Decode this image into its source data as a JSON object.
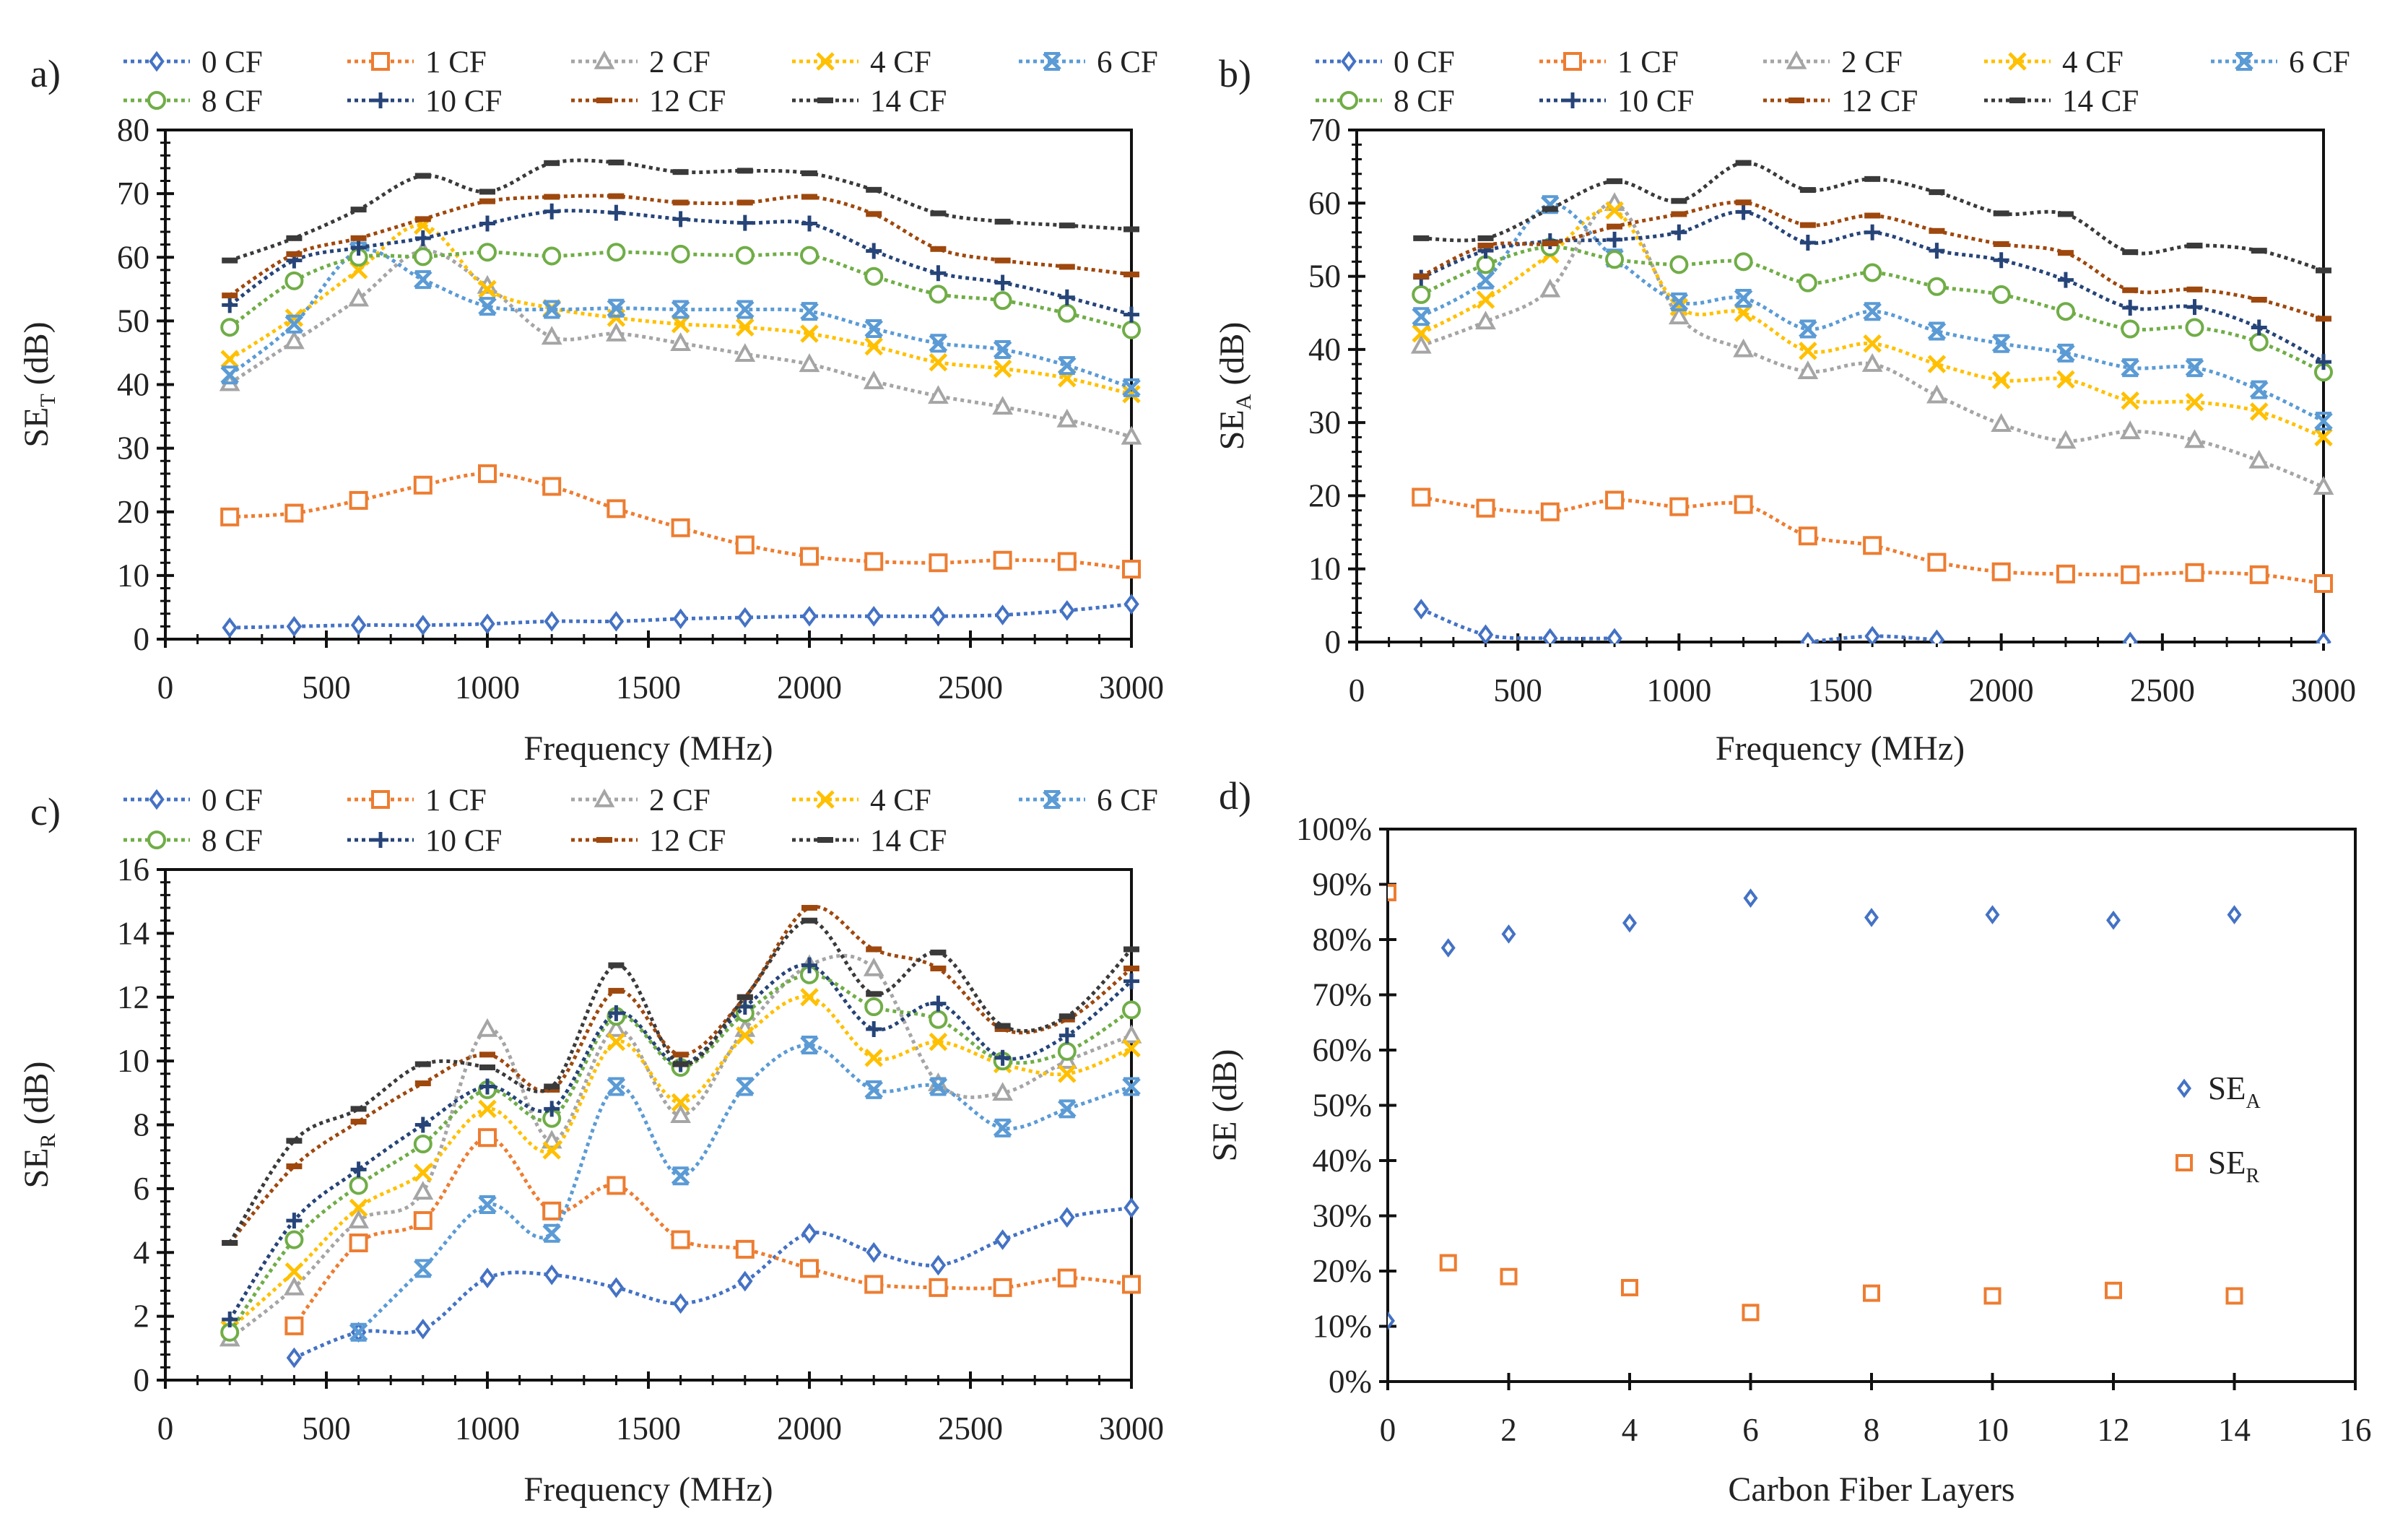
{
  "series_styles": {
    "0 CF": {
      "color": "#4472C4",
      "marker": "diamond"
    },
    "1 CF": {
      "color": "#ED7D31",
      "marker": "square"
    },
    "2 CF": {
      "color": "#A5A5A5",
      "marker": "triangle"
    },
    "4 CF": {
      "color": "#FFC000",
      "marker": "x"
    },
    "6 CF": {
      "color": "#5B9BD5",
      "marker": "star"
    },
    "8 CF": {
      "color": "#70AD47",
      "marker": "circle"
    },
    "10 CF": {
      "color": "#264478",
      "marker": "plus"
    },
    "12 CF": {
      "color": "#9E480E",
      "marker": "dash"
    },
    "14 CF": {
      "color": "#3A3A3A",
      "marker": "dash"
    }
  },
  "chart_data": [
    {
      "panel": "a)",
      "type": "line",
      "xlabel": "Frequency (MHz)",
      "ylabel": {
        "main": "SE",
        "sub": "T",
        "unit": " (dB)"
      },
      "xlim": [
        0,
        3000
      ],
      "ylim": [
        0,
        80
      ],
      "xticks": [
        "0",
        "500",
        "1000",
        "1500",
        "2000",
        "2500",
        "3000"
      ],
      "yticks": [
        "0",
        "10",
        "20",
        "30",
        "40",
        "50",
        "60",
        "70",
        "80"
      ],
      "grid": false,
      "legend": "top",
      "x": [
        200,
        400,
        600,
        800,
        1000,
        1200,
        1400,
        1600,
        1800,
        2000,
        2200,
        2400,
        2600,
        2800,
        3000
      ],
      "series": [
        {
          "name": "0 CF",
          "values": [
            1.8,
            2,
            2.2,
            2.2,
            2.4,
            2.8,
            2.8,
            3.2,
            3.4,
            3.6,
            3.6,
            3.6,
            3.8,
            4.5,
            5.5
          ]
        },
        {
          "name": "1 CF",
          "values": [
            19.2,
            19.8,
            21.8,
            24.2,
            26,
            24,
            20.5,
            17.5,
            14.8,
            13,
            12.2,
            12,
            12.4,
            12.2,
            11
          ]
        },
        {
          "name": "2 CF",
          "values": [
            40.2,
            46.8,
            53.5,
            61,
            55.5,
            47.5,
            48,
            46.5,
            44.8,
            43.2,
            40.5,
            38.2,
            36.5,
            34.5,
            31.8
          ]
        },
        {
          "name": "4 CF",
          "values": [
            44,
            50.5,
            58,
            65,
            55,
            52,
            50.5,
            49.5,
            49,
            48,
            46,
            43.5,
            42.5,
            41,
            38.5
          ]
        },
        {
          "name": "6 CF",
          "values": [
            41.5,
            49.5,
            61,
            56.5,
            52.3,
            51.8,
            52,
            51.8,
            51.8,
            51.5,
            48.8,
            46.5,
            45.5,
            43,
            39.5
          ]
        },
        {
          "name": "8 CF",
          "values": [
            49,
            56.3,
            60,
            60.1,
            60.8,
            60.2,
            60.8,
            60.5,
            60.3,
            60.3,
            57,
            54.2,
            53.2,
            51.2,
            48.6
          ]
        },
        {
          "name": "10 CF",
          "values": [
            52.5,
            59.5,
            61.5,
            63,
            65.3,
            67.2,
            67,
            66,
            65.4,
            65.3,
            61,
            57.5,
            56,
            53.7,
            51
          ]
        },
        {
          "name": "12 CF",
          "values": [
            54,
            60.5,
            63,
            66,
            68.8,
            69.5,
            69.6,
            68.6,
            68.6,
            69.5,
            66.8,
            61.3,
            59.5,
            58.5,
            57.3
          ]
        },
        {
          "name": "14 CF",
          "values": [
            59.5,
            63,
            67.5,
            72.8,
            70.3,
            74.8,
            74.9,
            73.4,
            73.6,
            73.2,
            70.6,
            66.9,
            65.6,
            65,
            64.4
          ]
        }
      ]
    },
    {
      "panel": "b)",
      "type": "line",
      "xlabel": "Frequency (MHz)",
      "ylabel": {
        "main": "SE",
        "sub": "A",
        "unit": " (dB)"
      },
      "xlim": [
        0,
        3000
      ],
      "ylim": [
        0,
        70
      ],
      "xticks": [
        "0",
        "500",
        "1000",
        "1500",
        "2000",
        "2500",
        "3000"
      ],
      "yticks": [
        "0",
        "10",
        "20",
        "30",
        "40",
        "50",
        "60",
        "70"
      ],
      "grid": false,
      "legend": "top",
      "x": [
        200,
        400,
        600,
        800,
        1000,
        1200,
        1400,
        1600,
        1800,
        2000,
        2200,
        2400,
        2600,
        2800,
        3000
      ],
      "series": [
        {
          "name": "0 CF",
          "values": [
            4.5,
            1,
            0.5,
            0.5,
            null,
            null,
            0,
            0.8,
            0.3,
            null,
            null,
            0,
            null,
            null,
            0
          ]
        },
        {
          "name": "1 CF",
          "values": [
            19.8,
            18.3,
            17.8,
            19.4,
            18.5,
            18.8,
            14.5,
            13.2,
            10.9,
            9.6,
            9.3,
            9.2,
            9.5,
            9.2,
            8
          ]
        },
        {
          "name": "2 CF",
          "values": [
            40.5,
            43.8,
            48.2,
            60,
            44.5,
            40,
            37,
            38,
            33.7,
            29.8,
            27.5,
            28.8,
            27.6,
            24.8,
            21.2
          ]
        },
        {
          "name": "4 CF",
          "values": [
            42.2,
            46.8,
            53,
            59,
            45.8,
            45,
            39.8,
            40.8,
            38,
            35.8,
            35.9,
            33,
            32.8,
            31.5,
            28
          ]
        },
        {
          "name": "6 CF",
          "values": [
            44.5,
            49.5,
            59.8,
            52.5,
            46.5,
            47,
            42.8,
            45.2,
            42.5,
            40.8,
            39.5,
            37.5,
            37.5,
            34.5,
            30.2
          ]
        },
        {
          "name": "8 CF",
          "values": [
            47.5,
            51.6,
            54,
            52.3,
            51.6,
            52,
            49.1,
            50.5,
            48.6,
            47.5,
            45.2,
            42.8,
            43,
            41,
            36.9
          ]
        },
        {
          "name": "10 CF",
          "values": [
            49.8,
            53.5,
            54.8,
            55,
            56,
            58.8,
            54.6,
            56,
            53.5,
            52.2,
            49.5,
            45.7,
            45.8,
            43,
            38.3
          ]
        },
        {
          "name": "12 CF",
          "values": [
            50,
            54.2,
            54.5,
            56.8,
            58.5,
            60.1,
            57,
            58.3,
            56.2,
            54.4,
            53.2,
            48.1,
            48.2,
            46.8,
            44.2
          ]
        },
        {
          "name": "14 CF",
          "values": [
            55.2,
            55.2,
            59.2,
            63,
            60.3,
            65.5,
            61.8,
            63.3,
            61.5,
            58.6,
            58.5,
            53.3,
            54.2,
            53.5,
            50.8
          ]
        }
      ]
    },
    {
      "panel": "c)",
      "type": "line",
      "xlabel": "Frequency (MHz)",
      "ylabel": {
        "main": "SE",
        "sub": "R",
        "unit": " (dB)"
      },
      "xlim": [
        0,
        3000
      ],
      "ylim": [
        0,
        16
      ],
      "xticks": [
        "0",
        "500",
        "1000",
        "1500",
        "2000",
        "2500",
        "3000"
      ],
      "yticks": [
        "0",
        "2",
        "4",
        "6",
        "8",
        "10",
        "12",
        "14",
        "16"
      ],
      "grid": false,
      "legend": "top",
      "x": [
        200,
        400,
        600,
        800,
        1000,
        1200,
        1400,
        1600,
        1800,
        2000,
        2200,
        2400,
        2600,
        2800,
        3000
      ],
      "series": [
        {
          "name": "0 CF",
          "values": [
            null,
            0.7,
            1.5,
            1.6,
            3.2,
            3.3,
            2.9,
            2.4,
            3.1,
            4.6,
            4.0,
            3.6,
            4.4,
            5.1,
            5.4
          ]
        },
        {
          "name": "1 CF",
          "values": [
            null,
            1.7,
            4.3,
            5,
            7.6,
            5.3,
            6.1,
            4.4,
            4.1,
            3.5,
            3,
            2.9,
            2.9,
            3.2,
            3
          ]
        },
        {
          "name": "2 CF",
          "values": [
            1.3,
            2.9,
            5,
            5.9,
            11,
            7.5,
            11,
            8.3,
            11,
            13,
            12.9,
            9.3,
            9,
            10,
            10.8
          ]
        },
        {
          "name": "4 CF",
          "values": [
            1.6,
            3.4,
            5.4,
            6.5,
            8.5,
            7.2,
            10.6,
            8.7,
            10.8,
            12,
            10.1,
            10.6,
            9.9,
            9.6,
            10.4
          ]
        },
        {
          "name": "6 CF",
          "values": [
            null,
            null,
            1.5,
            3.5,
            5.5,
            4.6,
            9.2,
            6.4,
            9.2,
            10.5,
            9.1,
            9.2,
            7.9,
            8.5,
            9.2
          ]
        },
        {
          "name": "8 CF",
          "values": [
            1.5,
            4.4,
            6.1,
            7.4,
            9.1,
            8.2,
            11.4,
            9.8,
            11.5,
            12.7,
            11.7,
            11.3,
            10,
            10.3,
            11.6
          ]
        },
        {
          "name": "10 CF",
          "values": [
            1.9,
            5,
            6.6,
            8,
            9.2,
            8.5,
            11.5,
            9.9,
            11.7,
            13,
            11,
            11.8,
            10.1,
            10.8,
            12.5
          ]
        },
        {
          "name": "12 CF",
          "values": [
            4.3,
            6.7,
            8.1,
            9.3,
            10.2,
            9.1,
            12.2,
            10.2,
            12,
            14.8,
            13.5,
            12.9,
            11,
            11.3,
            12.9
          ]
        },
        {
          "name": "14 CF",
          "values": [
            4.3,
            7.5,
            8.5,
            9.9,
            9.8,
            9.2,
            13,
            9.9,
            12,
            14.4,
            12.1,
            13.4,
            11.1,
            11.4,
            13.5
          ]
        }
      ]
    },
    {
      "panel": "d)",
      "type": "scatter",
      "xlabel": "Carbon Fiber Layers",
      "ylabel": {
        "main": "SE",
        "sub": "",
        "unit": " (dB)"
      },
      "xlim": [
        0,
        16
      ],
      "ylim": [
        0,
        100
      ],
      "xticks": [
        "0",
        "2",
        "4",
        "6",
        "8",
        "10",
        "12",
        "14",
        "16"
      ],
      "yticks": [
        "0%",
        "10%",
        "20%",
        "30%",
        "40%",
        "50%",
        "60%",
        "70%",
        "80%",
        "90%",
        "100%"
      ],
      "grid": false,
      "legend": "right",
      "x": [
        0,
        1,
        2,
        4,
        6,
        8,
        10,
        12,
        14
      ],
      "series": [
        {
          "name": {
            "main": "SE",
            "sub": "A"
          },
          "color": "#4472C4",
          "marker": "diamond",
          "values": [
            11,
            78.5,
            81,
            83,
            87.5,
            84,
            84.5,
            83.5,
            84.5
          ]
        },
        {
          "name": {
            "main": "SE",
            "sub": "R"
          },
          "color": "#ED7D31",
          "marker": "square",
          "values": [
            88.5,
            21.5,
            19,
            17,
            12.5,
            16,
            15.5,
            16.5,
            15.5
          ]
        }
      ]
    }
  ]
}
